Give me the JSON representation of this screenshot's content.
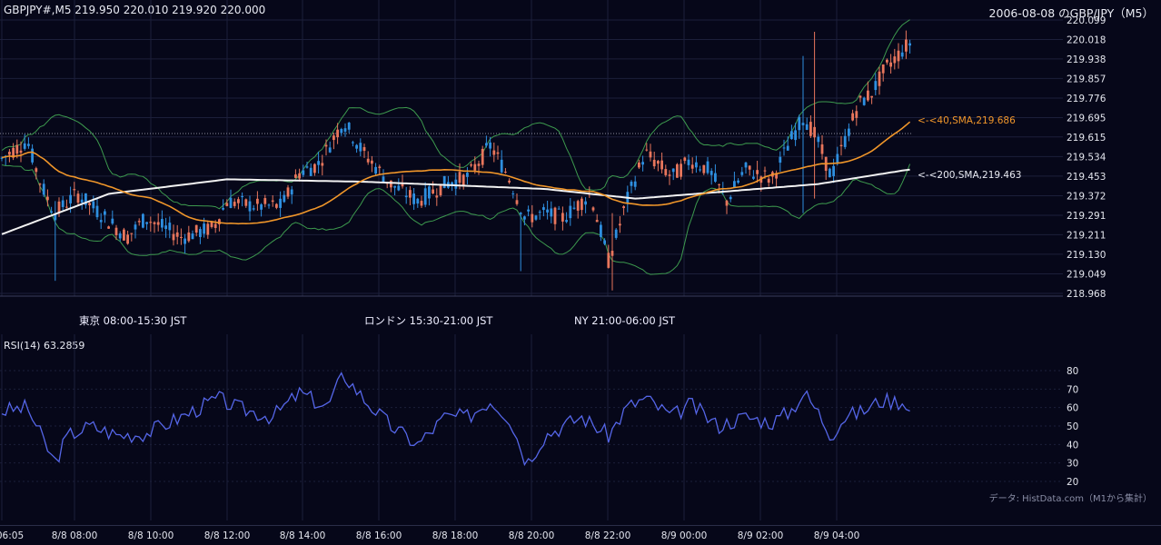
{
  "header": {
    "symbol_info": "GBPJPY#,M5 219.950 220.010 219.920 220.000",
    "chart_title": "2006-08-08 のGBP/JPY（M5）"
  },
  "main_chart": {
    "price_axis": [
      "220.099",
      "220.018",
      "219.938",
      "219.857",
      "219.776",
      "219.695",
      "219.615",
      "219.534",
      "219.453",
      "219.372",
      "219.291",
      "219.211",
      "219.130",
      "219.049",
      "218.968"
    ],
    "time_axis": [
      "6",
      "8",
      "10",
      "12",
      "14",
      "16",
      "18",
      "20",
      "22",
      "0",
      "2",
      "4"
    ],
    "sma40_label": "<-<40,SMA,219.686",
    "sma200_label": "<-<200,SMA,219.463",
    "dotted_level": 219.63
  },
  "sessions": [
    {
      "label": "東京 08:00-15:30 JST",
      "color": "#24497a"
    },
    {
      "label": "ロンドン 15:30-21:00 JST",
      "color": "#7a4f15"
    },
    {
      "label": "NY 21:00-06:00 JST",
      "color": "#235f38"
    }
  ],
  "rsi": {
    "title": "RSI(14) 63.2859",
    "levels": [
      "80",
      "70",
      "60",
      "50",
      "40",
      "30",
      "20"
    ],
    "source_note": "データ: HistData.com（M1から集計）"
  },
  "bottom_axis": [
    "06:05",
    "8/8 08:00",
    "8/8 10:00",
    "8/8 12:00",
    "8/8 14:00",
    "8/8 16:00",
    "8/8 18:00",
    "8/8 20:00",
    "8/8 22:00",
    "8/9 00:00",
    "8/9 02:00",
    "8/9 04:00"
  ],
  "colors": {
    "background": "#060719",
    "up_candle": "#2e8fe0",
    "down_candle": "#e8765c",
    "sma40": "#f0962a",
    "sma200": "#f2f2f2",
    "bollinger": "#3d9a4e",
    "rsi_line": "#5566e8",
    "grid": "#1c1f3a"
  }
}
